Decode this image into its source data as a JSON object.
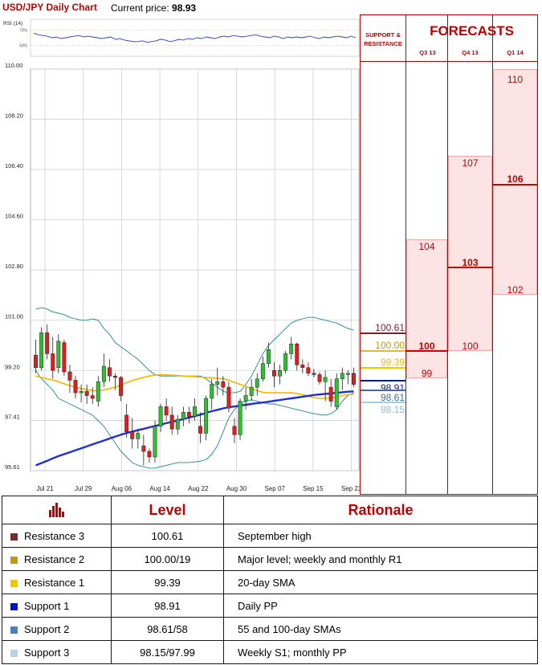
{
  "header": {
    "title": "USD/JPY Daily Chart",
    "price_label": "Current price:",
    "price_value": "98.93"
  },
  "rsi": {
    "label": "RSI (14)",
    "levels": [
      "70%",
      "50%"
    ],
    "values": [
      66,
      64,
      63,
      62,
      60,
      61,
      59,
      60,
      61,
      62,
      63,
      61,
      62,
      61,
      60,
      59,
      60,
      61,
      58,
      59,
      57,
      56,
      55,
      55,
      56,
      54,
      55,
      56,
      58,
      57,
      55,
      56,
      58,
      57,
      59,
      58,
      60,
      59,
      61,
      60,
      59,
      61,
      62,
      61,
      63,
      62,
      61,
      62,
      63,
      64,
      62,
      61,
      60,
      62,
      61,
      59,
      61,
      60,
      61,
      60,
      61,
      62,
      60,
      59,
      61,
      60,
      61,
      62,
      61,
      60,
      62,
      60
    ]
  },
  "chart_data": {
    "type": "candlestick",
    "title": "USD/JPY Daily Chart",
    "y_ticks": [
      "110.00",
      "108.20",
      "106.40",
      "104.60",
      "102.80",
      "101.00",
      "99.20",
      "97.41",
      "95.61"
    ],
    "ylim": [
      95.61,
      110.0
    ],
    "x_ticks": [
      "Jul 21",
      "Jul 29",
      "Aug 06",
      "Aug 14",
      "Aug 22",
      "Aug 30",
      "Sep 07",
      "Sep 15",
      "Sep 23"
    ],
    "grid": true,
    "ohlc": [
      [
        99.75,
        100.3,
        99.1,
        99.3
      ],
      [
        99.3,
        100.75,
        99.2,
        100.55
      ],
      [
        100.55,
        100.85,
        99.6,
        99.8
      ],
      [
        99.8,
        100.4,
        98.9,
        99.2
      ],
      [
        99.3,
        100.5,
        99.1,
        100.25
      ],
      [
        100.2,
        100.3,
        99.0,
        99.15
      ],
      [
        99.15,
        99.4,
        98.4,
        98.85
      ],
      [
        98.85,
        99.0,
        98.2,
        98.4
      ],
      [
        98.4,
        98.7,
        98.05,
        98.45
      ],
      [
        98.45,
        98.7,
        98.0,
        98.3
      ],
      [
        98.3,
        98.6,
        98.0,
        98.2
      ],
      [
        98.1,
        99.0,
        97.9,
        98.8
      ],
      [
        98.8,
        99.8,
        98.6,
        99.35
      ],
      [
        99.3,
        99.6,
        98.8,
        99.0
      ],
      [
        99.0,
        99.1,
        98.5,
        98.95
      ],
      [
        98.95,
        99.0,
        98.1,
        98.3
      ],
      [
        97.6,
        98.0,
        96.8,
        97.0
      ],
      [
        97.0,
        97.5,
        96.4,
        96.75
      ],
      [
        96.75,
        97.1,
        96.4,
        96.95
      ],
      [
        96.5,
        96.9,
        95.8,
        96.3
      ],
      [
        96.3,
        96.4,
        95.9,
        96.1
      ],
      [
        96.1,
        97.4,
        95.9,
        97.2
      ],
      [
        97.2,
        98.0,
        97.0,
        97.9
      ],
      [
        97.9,
        98.2,
        97.4,
        97.6
      ],
      [
        97.6,
        97.9,
        96.9,
        97.1
      ],
      [
        97.1,
        97.6,
        96.9,
        97.45
      ],
      [
        97.45,
        97.9,
        97.2,
        97.7
      ],
      [
        97.7,
        97.9,
        97.3,
        97.55
      ],
      [
        97.55,
        98.2,
        97.4,
        97.9
      ],
      [
        97.2,
        97.7,
        96.6,
        96.95
      ],
      [
        96.95,
        98.3,
        96.7,
        98.2
      ],
      [
        98.2,
        98.9,
        97.8,
        98.7
      ],
      [
        98.7,
        99.3,
        98.3,
        98.8
      ],
      [
        98.8,
        99.0,
        98.3,
        98.6
      ],
      [
        98.6,
        98.8,
        97.7,
        97.85
      ],
      [
        97.2,
        97.5,
        96.6,
        96.9
      ],
      [
        96.9,
        98.2,
        96.7,
        98.1
      ],
      [
        98.1,
        98.6,
        97.8,
        98.3
      ],
      [
        98.3,
        98.9,
        98.1,
        98.6
      ],
      [
        98.6,
        99.1,
        98.3,
        98.9
      ],
      [
        98.9,
        99.7,
        98.8,
        99.45
      ],
      [
        99.45,
        100.2,
        99.3,
        99.95
      ],
      [
        99.2,
        99.5,
        98.6,
        99.0
      ],
      [
        99.0,
        99.4,
        98.7,
        99.2
      ],
      [
        99.2,
        99.9,
        99.1,
        99.8
      ],
      [
        99.8,
        100.4,
        99.6,
        100.15
      ],
      [
        100.15,
        100.2,
        99.2,
        99.4
      ],
      [
        99.4,
        99.6,
        99.1,
        99.3
      ],
      [
        99.3,
        99.5,
        99.0,
        99.1
      ],
      [
        99.1,
        99.25,
        98.95,
        99.05
      ],
      [
        99.05,
        99.15,
        98.7,
        98.8
      ],
      [
        98.8,
        99.2,
        98.1,
        98.95
      ],
      [
        98.6,
        98.9,
        97.9,
        98.1
      ],
      [
        97.9,
        99.1,
        97.8,
        98.9
      ],
      [
        98.9,
        99.3,
        98.5,
        99.1
      ],
      [
        99.05,
        99.2,
        98.7,
        99.1
      ],
      [
        99.1,
        99.3,
        98.6,
        98.7
      ]
    ],
    "series": [
      {
        "name": "",
        "color": "#f7b500",
        "values": [
          99.0,
          98.95,
          98.9,
          98.86,
          98.8,
          98.72,
          98.66,
          98.6,
          98.55,
          98.51,
          98.48,
          98.47,
          98.5,
          98.55,
          98.6,
          98.68,
          98.76,
          98.84,
          98.9,
          98.95,
          99.0,
          99.03,
          99.05,
          99.04,
          99.03,
          99.02,
          99.0,
          98.99,
          98.98,
          98.96,
          98.95,
          98.94,
          98.92,
          98.9,
          98.85,
          98.77,
          98.7,
          98.63,
          98.55,
          98.48,
          98.42,
          98.4,
          98.4,
          98.4,
          98.4,
          98.4,
          98.38,
          98.33,
          98.28,
          98.23,
          98.2,
          98.2,
          98.21,
          98.25,
          98.3,
          98.33,
          98.35
        ]
      },
      {
        "name": "",
        "color": "#1f2fd8",
        "values": [
          95.8,
          95.88,
          95.96,
          96.05,
          96.13,
          96.2,
          96.27,
          96.34,
          96.41,
          96.48,
          96.55,
          96.62,
          96.69,
          96.76,
          96.83,
          96.9,
          96.96,
          97.01,
          97.06,
          97.11,
          97.16,
          97.21,
          97.26,
          97.31,
          97.36,
          97.41,
          97.46,
          97.51,
          97.56,
          97.62,
          97.68,
          97.74,
          97.79,
          97.84,
          97.88,
          97.91,
          97.94,
          97.97,
          98.0,
          98.03,
          98.05,
          98.08,
          98.11,
          98.14,
          98.17,
          98.2,
          98.23,
          98.26,
          98.29,
          98.32,
          98.34,
          98.36,
          98.38,
          98.4,
          98.42,
          98.44,
          98.45
        ]
      },
      {
        "name": "",
        "color": "#1d8a86",
        "values": [
          101.4,
          101.45,
          101.4,
          101.3,
          101.25,
          101.2,
          101.1,
          101.05,
          101.0,
          101.0,
          101.05,
          101.0,
          100.7,
          100.5,
          100.2,
          100.05,
          99.9,
          99.75,
          99.6,
          99.4,
          99.2,
          99.05,
          99.0,
          99.0,
          99.0,
          99.0,
          99.0,
          99.0,
          99.0,
          99.0,
          98.9,
          98.75,
          98.6,
          98.45,
          98.4,
          98.4,
          98.45,
          98.7,
          99.0,
          99.4,
          99.8,
          100.1,
          100.3,
          100.5,
          100.7,
          100.9,
          101.0,
          101.05,
          101.1,
          101.1,
          101.05,
          101.0,
          100.95,
          100.9,
          100.8,
          100.7,
          100.65
        ]
      },
      {
        "name": "",
        "color": "#1d8a86",
        "values": [
          99.2,
          98.9,
          98.7,
          98.5,
          98.2,
          98.1,
          98.0,
          97.9,
          97.8,
          97.7,
          97.6,
          97.4,
          97.2,
          96.9,
          96.6,
          96.3,
          96.1,
          95.9,
          95.8,
          95.75,
          95.7,
          95.7,
          95.75,
          95.8,
          95.85,
          95.9,
          95.9,
          95.9,
          95.92,
          95.95,
          96.0,
          96.2,
          96.5,
          97.0,
          97.5,
          97.8,
          98.0,
          98.1,
          98.15,
          98.1,
          98.05,
          98.0,
          98.0,
          97.95,
          97.9,
          97.85,
          97.8,
          97.75,
          97.7,
          97.65,
          97.62,
          97.6,
          97.65,
          97.8,
          98.1,
          98.3,
          98.4
        ]
      }
    ]
  },
  "levels_strip": {
    "r3": {
      "value": "100.61",
      "color": "#7b1f2a"
    },
    "r2": {
      "value": "100.00",
      "color": "#c49a00"
    },
    "r1": {
      "value": "99.39",
      "color": "#f5c400"
    },
    "s1": {
      "value": "98.91",
      "color": "#0016c8"
    },
    "s2": {
      "value": "98.61",
      "color": "#3d6fa6"
    },
    "s3": {
      "value": "98.15",
      "color": "#9ecfe0"
    }
  },
  "forecasts": {
    "title": "FORECASTS",
    "sr_label": "SUPPORT & RESISTANCE",
    "quarters": [
      {
        "label": "Q3 13",
        "high": "104",
        "mid": "100",
        "low": "99"
      },
      {
        "label": "Q4 13",
        "high": "107",
        "mid": "103",
        "low": "100"
      },
      {
        "label": "Q1 14",
        "high": "110",
        "mid": "106",
        "low": "102"
      }
    ]
  },
  "table": {
    "headers": [
      "Level",
      "Rationale"
    ],
    "rows": [
      {
        "name": "Resistance 3",
        "color": "#7b2b2f",
        "level": "100.61",
        "rationale": "September high"
      },
      {
        "name": "Resistance 2",
        "color": "#c49a00",
        "level": "100.00/19",
        "rationale": "Major level; weekly and monthly R1"
      },
      {
        "name": "Resistance 1",
        "color": "#f5c400",
        "level": "99.39",
        "rationale": "20-day SMA"
      },
      {
        "name": "Support 1",
        "color": "#0016c8",
        "level": "98.91",
        "rationale": "Daily PP"
      },
      {
        "name": "Support 2",
        "color": "#4f7fb6",
        "level": "98.61/58",
        "rationale": "55 and 100-day SMAs"
      },
      {
        "name": "Support 3",
        "color": "#b9cfe9",
        "level": "98.15/97.99",
        "rationale": "Weekly S1; monthly PP"
      }
    ]
  }
}
